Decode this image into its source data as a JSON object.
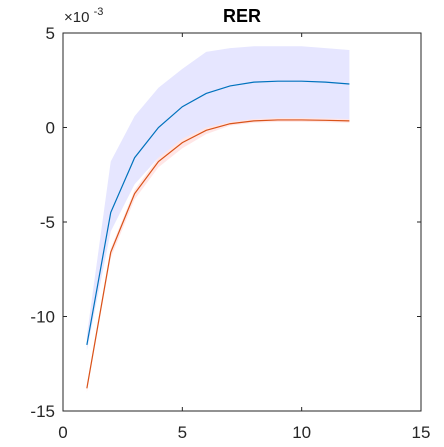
{
  "chart_data": {
    "type": "line",
    "title": "RER",
    "xlabel": "",
    "ylabel": "",
    "y_exponent_label": "×10",
    "y_exponent_power": "-3",
    "xlim": [
      0,
      15
    ],
    "ylim": [
      -15,
      5
    ],
    "xticks": [
      0,
      5,
      10,
      15
    ],
    "yticks": [
      5,
      0,
      -5,
      -10,
      -15
    ],
    "xtick_labels": [
      "0",
      "5",
      "10",
      "15"
    ],
    "ytick_labels": [
      "5",
      "0",
      "-5",
      "-10",
      "-15"
    ],
    "grid": false,
    "x": [
      1,
      2,
      3,
      4,
      5,
      6,
      7,
      8,
      9,
      10,
      11,
      12
    ],
    "series": [
      {
        "color": "#0072BD",
        "values": [
          -11.5,
          -4.5,
          -1.6,
          0.0,
          1.1,
          1.8,
          2.2,
          2.4,
          2.45,
          2.45,
          2.4,
          2.3
        ]
      },
      {
        "color": "#D95319",
        "values": [
          -13.8,
          -6.6,
          -3.5,
          -1.8,
          -0.8,
          -0.15,
          0.2,
          0.35,
          0.4,
          0.4,
          0.38,
          0.35
        ]
      }
    ],
    "bands": [
      {
        "color": "#E6E6FF",
        "lower": [
          -11.8,
          -5.5,
          -3.0,
          -1.6,
          -0.8,
          -0.2,
          0.2,
          0.35,
          0.4,
          0.4,
          0.38,
          0.35
        ],
        "upper": [
          -11.0,
          -1.8,
          0.6,
          2.1,
          3.1,
          4.0,
          4.2,
          4.3,
          4.3,
          4.3,
          4.2,
          4.1
        ]
      },
      {
        "color": "#FFE6E6",
        "lower": [
          -14.0,
          -6.9,
          -3.8,
          -2.1,
          -1.1,
          -0.35,
          0.1,
          0.25,
          0.3,
          0.3,
          0.28,
          0.25
        ],
        "upper": [
          -13.6,
          -6.4,
          -3.3,
          -1.6,
          -0.6,
          0.0,
          0.3,
          0.45,
          0.5,
          0.5,
          0.48,
          0.45
        ]
      }
    ]
  }
}
